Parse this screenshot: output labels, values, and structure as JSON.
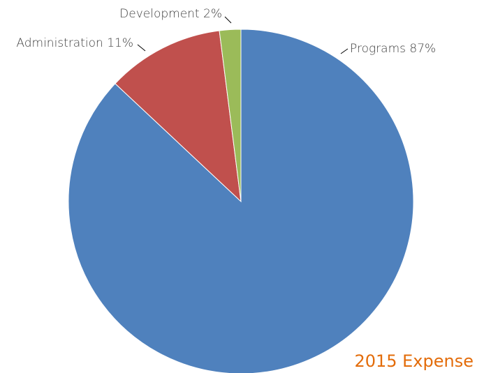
{
  "chart_data": {
    "type": "pie",
    "title": "2015 Expense",
    "categories": [
      "Programs",
      "Administration",
      "Development"
    ],
    "values": [
      87,
      11,
      2
    ],
    "value_labels": [
      "87%",
      "11%",
      "2%"
    ],
    "colors": [
      "#4f81bd",
      "#c0504d",
      "#9bbb59"
    ]
  }
}
